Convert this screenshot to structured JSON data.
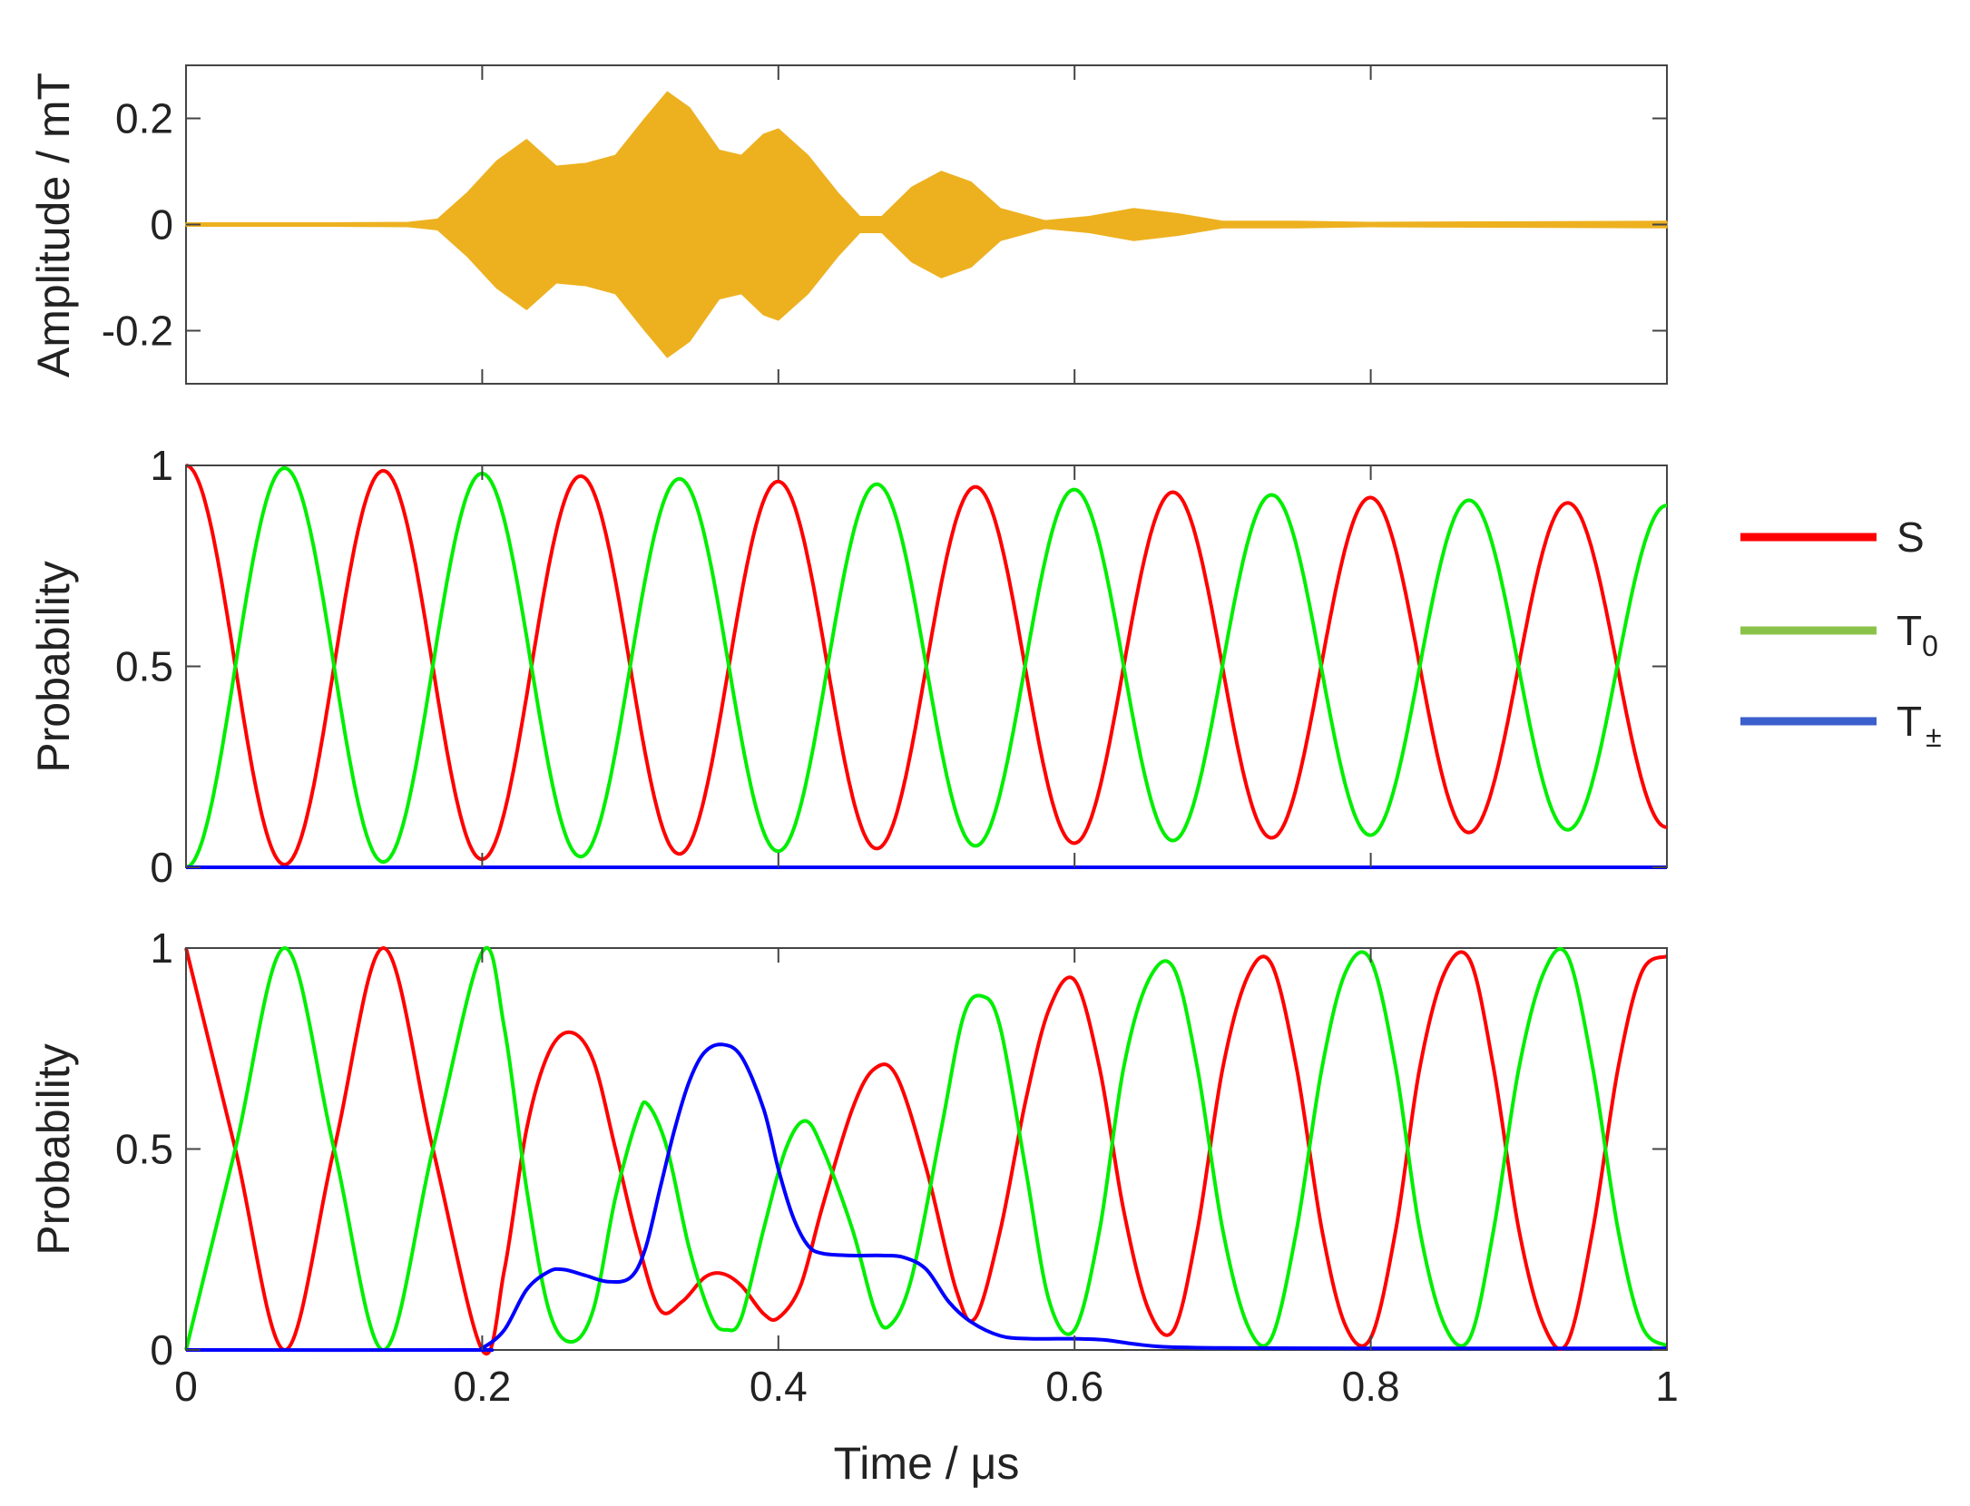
{
  "chart_data": [
    {
      "type": "area",
      "ylabel": "Amplitude / mT",
      "xlim": [
        0,
        1
      ],
      "ylim": [
        -0.3,
        0.3
      ],
      "yticks": [
        -0.2,
        0,
        0.2
      ],
      "ytick_labels": [
        "-0.2",
        "0",
        "0.2"
      ],
      "color": "#EDB120",
      "series": [
        {
          "envelope_points": [
            [
              0.0,
              0.003
            ],
            [
              0.1,
              0.003
            ],
            [
              0.15,
              0.004
            ],
            [
              0.17,
              0.01
            ],
            [
              0.19,
              0.06
            ],
            [
              0.21,
              0.12
            ],
            [
              0.23,
              0.16
            ],
            [
              0.25,
              0.11
            ],
            [
              0.27,
              0.115
            ],
            [
              0.29,
              0.13
            ],
            [
              0.31,
              0.2
            ],
            [
              0.325,
              0.25
            ],
            [
              0.34,
              0.22
            ],
            [
              0.36,
              0.14
            ],
            [
              0.375,
              0.13
            ],
            [
              0.39,
              0.17
            ],
            [
              0.4,
              0.18
            ],
            [
              0.42,
              0.13
            ],
            [
              0.44,
              0.06
            ],
            [
              0.455,
              0.015
            ],
            [
              0.47,
              0.015
            ],
            [
              0.49,
              0.07
            ],
            [
              0.51,
              0.1
            ],
            [
              0.53,
              0.08
            ],
            [
              0.55,
              0.03
            ],
            [
              0.58,
              0.007
            ],
            [
              0.61,
              0.015
            ],
            [
              0.64,
              0.03
            ],
            [
              0.67,
              0.02
            ],
            [
              0.7,
              0.006
            ],
            [
              0.75,
              0.006
            ],
            [
              0.8,
              0.004
            ],
            [
              0.9,
              0.005
            ],
            [
              1.0,
              0.006
            ]
          ]
        }
      ]
    },
    {
      "type": "line",
      "ylabel": "Probability",
      "xlim": [
        0,
        1
      ],
      "ylim": [
        0,
        1
      ],
      "yticks": [
        0,
        0.5,
        1
      ],
      "ytick_labels": [
        "0",
        "0.5",
        "1"
      ],
      "series": [
        {
          "name": "S",
          "color": "#ff0000",
          "period": 0.1333,
          "amplitude_start": 1.0,
          "amplitude_end": 0.8,
          "phase": "starts at 1"
        },
        {
          "name": "T0",
          "color": "#00ee00",
          "period": 0.1333,
          "amplitude_start": 1.0,
          "amplitude_end": 0.8,
          "phase": "starts at 0"
        },
        {
          "name": "T±",
          "color": "#0000ff",
          "value": 0
        }
      ]
    },
    {
      "type": "line",
      "xlabel": "Time / μs",
      "ylabel": "Probability",
      "xlim": [
        0,
        1
      ],
      "ylim": [
        0,
        1
      ],
      "yticks": [
        0,
        0.5,
        1
      ],
      "ytick_labels": [
        "0",
        "0.5",
        "1"
      ],
      "xticks": [
        0,
        0.2,
        0.4,
        0.6,
        0.8,
        1
      ],
      "xtick_labels": [
        "0",
        "0.2",
        "0.4",
        "0.6",
        "0.8",
        "1"
      ],
      "series": [
        {
          "name": "S",
          "color": "#ff0000",
          "points": [
            [
              0.0,
              1.0
            ],
            [
              0.0333,
              0.5
            ],
            [
              0.0667,
              0.0
            ],
            [
              0.1,
              0.5
            ],
            [
              0.1333,
              1.0
            ],
            [
              0.1667,
              0.5
            ],
            [
              0.2,
              0.0
            ],
            [
              0.215,
              0.2
            ],
            [
              0.23,
              0.55
            ],
            [
              0.245,
              0.74
            ],
            [
              0.26,
              0.79
            ],
            [
              0.275,
              0.72
            ],
            [
              0.29,
              0.5
            ],
            [
              0.305,
              0.27
            ],
            [
              0.32,
              0.1
            ],
            [
              0.335,
              0.12
            ],
            [
              0.35,
              0.18
            ],
            [
              0.362,
              0.19
            ],
            [
              0.375,
              0.16
            ],
            [
              0.39,
              0.09
            ],
            [
              0.4,
              0.08
            ],
            [
              0.415,
              0.16
            ],
            [
              0.43,
              0.36
            ],
            [
              0.45,
              0.6
            ],
            [
              0.465,
              0.7
            ],
            [
              0.48,
              0.68
            ],
            [
              0.5,
              0.45
            ],
            [
              0.52,
              0.15
            ],
            [
              0.533,
              0.08
            ],
            [
              0.55,
              0.3
            ],
            [
              0.567,
              0.62
            ],
            [
              0.583,
              0.85
            ],
            [
              0.6,
              0.92
            ],
            [
              0.617,
              0.7
            ],
            [
              0.633,
              0.35
            ],
            [
              0.65,
              0.1
            ],
            [
              0.667,
              0.05
            ],
            [
              0.683,
              0.3
            ],
            [
              0.7,
              0.7
            ],
            [
              0.717,
              0.93
            ],
            [
              0.733,
              0.96
            ],
            [
              0.75,
              0.7
            ],
            [
              0.767,
              0.3
            ],
            [
              0.783,
              0.06
            ],
            [
              0.8,
              0.03
            ],
            [
              0.817,
              0.3
            ],
            [
              0.833,
              0.7
            ],
            [
              0.85,
              0.94
            ],
            [
              0.867,
              0.97
            ],
            [
              0.883,
              0.7
            ],
            [
              0.9,
              0.3
            ],
            [
              0.917,
              0.06
            ],
            [
              0.933,
              0.02
            ],
            [
              0.95,
              0.3
            ],
            [
              0.967,
              0.7
            ],
            [
              0.983,
              0.94
            ],
            [
              1.0,
              0.98
            ]
          ]
        },
        {
          "name": "T0",
          "color": "#00ee00",
          "points": [
            [
              0.0,
              0.0
            ],
            [
              0.0333,
              0.5
            ],
            [
              0.0667,
              1.0
            ],
            [
              0.1,
              0.5
            ],
            [
              0.1333,
              0.0
            ],
            [
              0.1667,
              0.5
            ],
            [
              0.2,
              0.99
            ],
            [
              0.215,
              0.8
            ],
            [
              0.23,
              0.4
            ],
            [
              0.245,
              0.1
            ],
            [
              0.26,
              0.02
            ],
            [
              0.275,
              0.1
            ],
            [
              0.29,
              0.38
            ],
            [
              0.305,
              0.58
            ],
            [
              0.312,
              0.61
            ],
            [
              0.325,
              0.5
            ],
            [
              0.34,
              0.25
            ],
            [
              0.355,
              0.08
            ],
            [
              0.365,
              0.05
            ],
            [
              0.375,
              0.08
            ],
            [
              0.39,
              0.3
            ],
            [
              0.405,
              0.5
            ],
            [
              0.418,
              0.57
            ],
            [
              0.43,
              0.5
            ],
            [
              0.45,
              0.3
            ],
            [
              0.465,
              0.1
            ],
            [
              0.475,
              0.06
            ],
            [
              0.49,
              0.18
            ],
            [
              0.51,
              0.55
            ],
            [
              0.525,
              0.83
            ],
            [
              0.538,
              0.88
            ],
            [
              0.55,
              0.8
            ],
            [
              0.567,
              0.45
            ],
            [
              0.583,
              0.12
            ],
            [
              0.6,
              0.05
            ],
            [
              0.617,
              0.3
            ],
            [
              0.633,
              0.7
            ],
            [
              0.65,
              0.92
            ],
            [
              0.667,
              0.95
            ],
            [
              0.683,
              0.7
            ],
            [
              0.7,
              0.3
            ],
            [
              0.717,
              0.06
            ],
            [
              0.733,
              0.03
            ],
            [
              0.75,
              0.3
            ],
            [
              0.767,
              0.7
            ],
            [
              0.783,
              0.94
            ],
            [
              0.8,
              0.97
            ],
            [
              0.817,
              0.7
            ],
            [
              0.833,
              0.3
            ],
            [
              0.85,
              0.06
            ],
            [
              0.867,
              0.03
            ],
            [
              0.883,
              0.3
            ],
            [
              0.9,
              0.7
            ],
            [
              0.917,
              0.94
            ],
            [
              0.933,
              0.98
            ],
            [
              0.95,
              0.7
            ],
            [
              0.967,
              0.3
            ],
            [
              0.983,
              0.06
            ],
            [
              1.0,
              0.01
            ]
          ]
        },
        {
          "name": "T±",
          "color": "#0000ff",
          "points": [
            [
              0.0,
              0.0
            ],
            [
              0.19,
              0.0
            ],
            [
              0.2,
              0.005
            ],
            [
              0.215,
              0.05
            ],
            [
              0.23,
              0.15
            ],
            [
              0.245,
              0.195
            ],
            [
              0.255,
              0.2
            ],
            [
              0.27,
              0.185
            ],
            [
              0.285,
              0.17
            ],
            [
              0.3,
              0.18
            ],
            [
              0.31,
              0.25
            ],
            [
              0.32,
              0.4
            ],
            [
              0.33,
              0.55
            ],
            [
              0.34,
              0.67
            ],
            [
              0.35,
              0.74
            ],
            [
              0.362,
              0.76
            ],
            [
              0.375,
              0.73
            ],
            [
              0.39,
              0.6
            ],
            [
              0.4,
              0.45
            ],
            [
              0.41,
              0.33
            ],
            [
              0.42,
              0.26
            ],
            [
              0.43,
              0.24
            ],
            [
              0.45,
              0.235
            ],
            [
              0.47,
              0.235
            ],
            [
              0.485,
              0.23
            ],
            [
              0.5,
              0.2
            ],
            [
              0.515,
              0.12
            ],
            [
              0.53,
              0.07
            ],
            [
              0.55,
              0.035
            ],
            [
              0.57,
              0.028
            ],
            [
              0.6,
              0.028
            ],
            [
              0.62,
              0.025
            ],
            [
              0.64,
              0.015
            ],
            [
              0.66,
              0.008
            ],
            [
              0.7,
              0.005
            ],
            [
              0.8,
              0.004
            ],
            [
              0.9,
              0.004
            ],
            [
              1.0,
              0.004
            ]
          ]
        }
      ]
    }
  ],
  "legend": {
    "position": "right",
    "items": [
      {
        "name": "S",
        "label": "S",
        "sub": "",
        "color": "#ff0000"
      },
      {
        "name": "T0",
        "label": "T",
        "sub": "0",
        "color": "#8bc34a"
      },
      {
        "name": "T-pm",
        "label": "T",
        "sub": "±",
        "color": "#3b5fcc"
      }
    ]
  }
}
